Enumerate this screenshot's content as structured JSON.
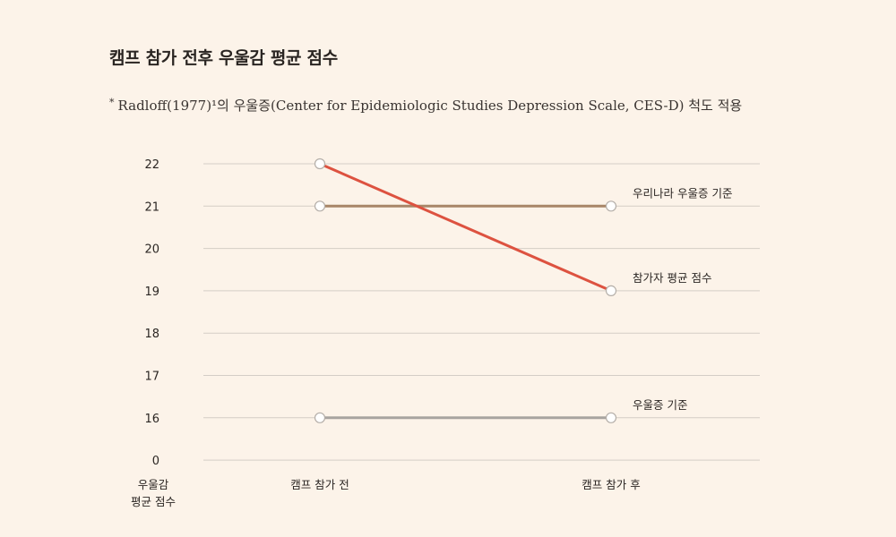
{
  "title": "캠프 참가 전후 우울감 평균 점수",
  "subtitle": {
    "marker": "*",
    "text": "Radloff(1977)¹의 우울증(Center for Epidemiologic Studies Depression Scale, CES-D) 척도 적용"
  },
  "chart_data": {
    "type": "line",
    "title": "캠프 참가 전후 우울감 평균 점수",
    "ylabel": [
      "우울감",
      "평균 점수"
    ],
    "xlabel": "",
    "categories": [
      "캠프 참가 전",
      "캠프 참가 후"
    ],
    "y_ticks": [
      "22",
      "21",
      "20",
      "19",
      "18",
      "17",
      "16",
      "0"
    ],
    "axis_break": true,
    "grid": true,
    "series": [
      {
        "name": "우리나라 우울증 기준",
        "values": [
          21,
          21
        ],
        "color": "#a88668"
      },
      {
        "name": "참가자 평균 점수",
        "values": [
          22,
          19
        ],
        "color": "#dd5240"
      },
      {
        "name": "우울증 기준",
        "values": [
          16,
          16
        ],
        "color": "#a8a4a0"
      }
    ],
    "colors": {
      "background": "#fcf3e9",
      "gridline": "#d4cdc6",
      "marker_fill": "#ffffff",
      "marker_stroke": "#b4aea8"
    }
  }
}
